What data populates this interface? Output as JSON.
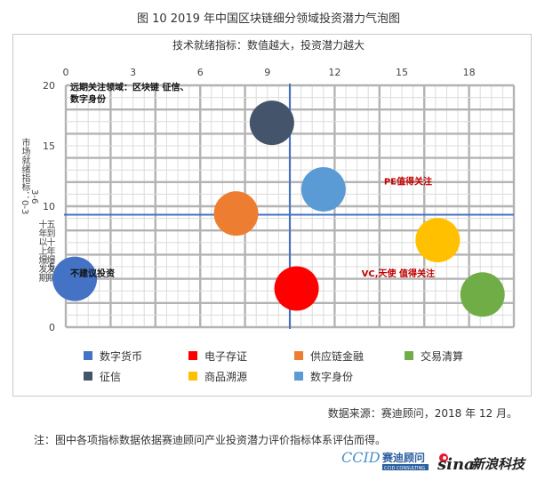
{
  "figure": {
    "title": "图 10   2019 年中国区块链细分领域投资潜力气泡图",
    "source": "数据来源：赛迪顾问，2018 年 12 月。",
    "note": "注：图中各项指标数据依据赛迪顾问产业投资潜力评价指标体系评估而得。"
  },
  "logos": {
    "ccid_text": "CCID",
    "ccid_name": "赛迪顾问",
    "ccid_sub": "CCID CONSULTING",
    "sina_text": "sina",
    "sina_name": "新浪科技"
  },
  "chart_data": {
    "type": "scatter",
    "xlabel": "技术就绪指标：数值越大，投资潜力越大",
    "ylabel_lines": [
      "市场就绪指标：0-3",
      "十年以上爆发期",
      "3-6",
      "五到十年爆发期"
    ],
    "xlim": [
      0,
      20
    ],
    "ylim": [
      0,
      20
    ],
    "x_ticks": [
      0,
      3,
      6,
      9,
      12,
      15,
      18
    ],
    "y_ticks": [
      0,
      5,
      10,
      15,
      20
    ],
    "x_divider": 10,
    "y_divider": 9.3,
    "grid": true,
    "legend_position": "bottom",
    "series": [
      {
        "name": "数字货币",
        "color": "#4472c4",
        "x": 0.4,
        "y": 4
      },
      {
        "name": "电子存证",
        "color": "#ff0000",
        "x": 10.3,
        "y": 3.2
      },
      {
        "name": "供应链金融",
        "color": "#ed7d31",
        "x": 7.6,
        "y": 9.4
      },
      {
        "name": "交易清算",
        "color": "#70ad47",
        "x": 18.6,
        "y": 2.7
      },
      {
        "name": "征信",
        "color": "#44546a",
        "x": 9.2,
        "y": 16.9
      },
      {
        "name": "商品溯源",
        "color": "#ffc000",
        "x": 16.6,
        "y": 7.2
      },
      {
        "name": "数字身份",
        "color": "#5b9bd5",
        "x": 11.5,
        "y": 11.4
      }
    ],
    "annotations": [
      {
        "text": "远期关注领域：区块链 征信、",
        "x": 0.2,
        "y": 19.6,
        "color": "#111111"
      },
      {
        "text": "数字身份",
        "x": 0.2,
        "y": 18.6,
        "color": "#111111"
      },
      {
        "text": "PE值得关注",
        "x": 14.2,
        "y": 11.8,
        "color": "#c00000"
      },
      {
        "text": "VC,天使 值得关注",
        "x": 13.2,
        "y": 4.2,
        "color": "#c00000"
      },
      {
        "text": "不建议投资",
        "x": 0.2,
        "y": 4.2,
        "color": "#111111"
      }
    ]
  }
}
